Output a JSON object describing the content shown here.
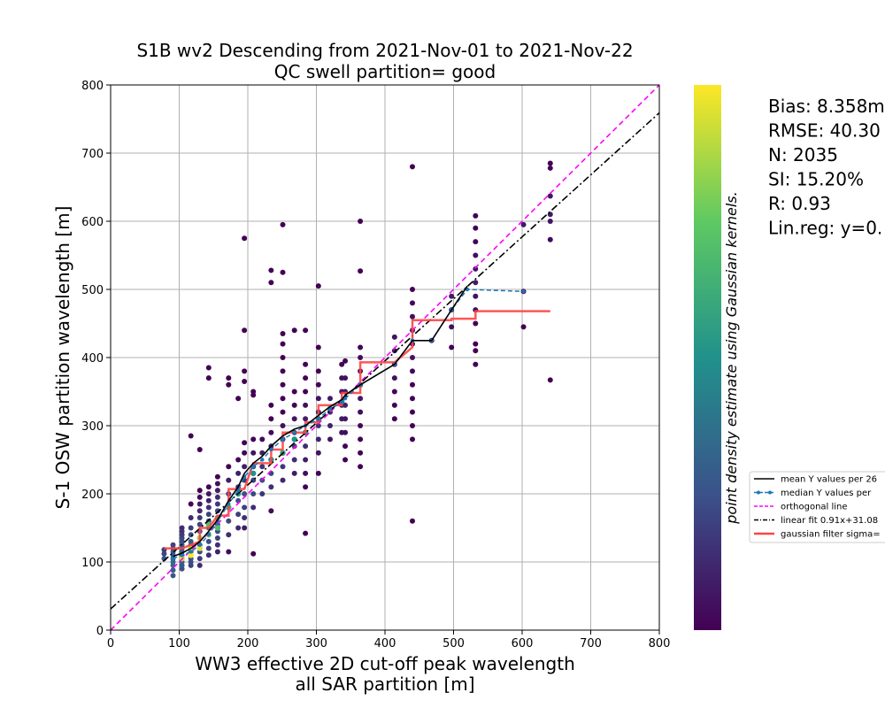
{
  "chart_data": {
    "type": "scatter",
    "title_line1": "S1B wv2 Descending from 2021-Nov-01 to 2021-Nov-22",
    "title_line2": "QC swell partition= good",
    "xlabel_line1": "WW3 effective 2D cut-off peak wavelength",
    "xlabel_line2": "all SAR partition [m]",
    "ylabel": "S-1 OSW partition wavelength [m]",
    "xlim": [
      0,
      800
    ],
    "ylim": [
      0,
      800
    ],
    "xticks": [
      0,
      100,
      200,
      300,
      400,
      500,
      600,
      700,
      800
    ],
    "yticks": [
      0,
      100,
      200,
      300,
      400,
      500,
      600,
      700,
      800
    ],
    "grid": true,
    "colorbar_label": "point density estimate using Gaussian kernels.",
    "colormap": [
      "#440154",
      "#3b528b",
      "#21918c",
      "#5ec962",
      "#fde725"
    ],
    "stats": [
      "Bias: 8.358m",
      "RMSE: 40.30",
      "N: 2035",
      "SI: 15.20%",
      "R: 0.93",
      "Lin.reg: y=0."
    ],
    "legend": [
      {
        "label": "mean Y values per 26",
        "color": "#000000",
        "style": "solid"
      },
      {
        "label": "median Y values per",
        "color": "#1f77b4",
        "style": "dashed-dot-marker"
      },
      {
        "label": "orthogonal line",
        "color": "#ff00ff",
        "style": "dashed"
      },
      {
        "label": "linear fit 0.91x+31.08",
        "color": "#000000",
        "style": "dashdot"
      },
      {
        "label": "gaussian filter sigma=",
        "color": "#ff4444",
        "style": "thick"
      }
    ],
    "scatter_columns": [
      {
        "x": 78,
        "y": [
          105,
          112,
          118
        ]
      },
      {
        "x": 91,
        "y": [
          80,
          88,
          95,
          100,
          105,
          110,
          115,
          120,
          125
        ]
      },
      {
        "x": 104,
        "y": [
          90,
          95,
          100,
          105,
          110,
          115,
          120,
          125,
          130,
          135,
          140,
          145,
          150
        ]
      },
      {
        "x": 117,
        "y": [
          95,
          100,
          105,
          110,
          115,
          120,
          125,
          130,
          140,
          150,
          165,
          185,
          285
        ]
      },
      {
        "x": 130,
        "y": [
          95,
          105,
          115,
          125,
          135,
          145,
          155,
          165,
          175,
          185,
          195,
          205,
          265
        ]
      },
      {
        "x": 143,
        "y": [
          110,
          120,
          130,
          140,
          150,
          160,
          170,
          180,
          190,
          200,
          210,
          370,
          385
        ]
      },
      {
        "x": 156,
        "y": [
          115,
          125,
          135,
          145,
          155,
          165,
          175,
          185,
          195,
          205,
          215,
          225
        ]
      },
      {
        "x": 172,
        "y": [
          115,
          140,
          160,
          180,
          200,
          220,
          240,
          360,
          370
        ]
      },
      {
        "x": 186,
        "y": [
          150,
          170,
          190,
          210,
          230,
          250,
          340
        ]
      },
      {
        "x": 195,
        "y": [
          150,
          165,
          180,
          200,
          220,
          240,
          260,
          275,
          365,
          380,
          440,
          575
        ]
      },
      {
        "x": 208,
        "y": [
          112,
          180,
          200,
          220,
          240,
          260,
          280,
          345,
          350
        ]
      },
      {
        "x": 221,
        "y": [
          200,
          220,
          240,
          260,
          280
        ]
      },
      {
        "x": 234,
        "y": [
          175,
          210,
          230,
          250,
          270,
          290,
          310,
          330,
          510,
          528
        ]
      },
      {
        "x": 251,
        "y": [
          220,
          240,
          260,
          280,
          300,
          320,
          340,
          360,
          380,
          400,
          420,
          435,
          525,
          595
        ]
      },
      {
        "x": 268,
        "y": [
          230,
          250,
          270,
          290,
          310,
          330,
          350,
          440
        ]
      },
      {
        "x": 284,
        "y": [
          142,
          210,
          230,
          250,
          270,
          290,
          310,
          330,
          350,
          370,
          390,
          440
        ]
      },
      {
        "x": 303,
        "y": [
          230,
          260,
          280,
          300,
          320,
          340,
          360,
          380,
          415,
          505
        ]
      },
      {
        "x": 320,
        "y": [
          280,
          300,
          320,
          340
        ]
      },
      {
        "x": 337,
        "y": [
          290,
          310,
          330,
          350,
          370,
          390
        ]
      },
      {
        "x": 342,
        "y": [
          250,
          270,
          290,
          310,
          330,
          350,
          370,
          395
        ]
      },
      {
        "x": 364,
        "y": [
          240,
          260,
          280,
          300,
          320,
          340,
          360,
          380,
          400,
          415,
          527,
          600
        ]
      },
      {
        "x": 414,
        "y": [
          310,
          330,
          350,
          370,
          390,
          410,
          430
        ]
      },
      {
        "x": 440,
        "y": [
          160,
          280,
          300,
          320,
          340,
          360,
          380,
          400,
          420,
          440,
          460,
          480,
          500,
          680
        ]
      },
      {
        "x": 468,
        "y": [
          425
        ]
      },
      {
        "x": 497,
        "y": [
          415,
          445,
          470,
          490
        ]
      },
      {
        "x": 532,
        "y": [
          390,
          410,
          420,
          450,
          470,
          490,
          510,
          530,
          550,
          570,
          590,
          608
        ]
      },
      {
        "x": 602,
        "y": [
          445,
          497,
          595
        ]
      },
      {
        "x": 641,
        "y": [
          367,
          573,
          600,
          610,
          637,
          678,
          685
        ]
      }
    ],
    "dense_points": [
      {
        "x": 104,
        "y": 105,
        "d": 0.95
      },
      {
        "x": 117,
        "y": 110,
        "d": 1.0
      },
      {
        "x": 117,
        "y": 120,
        "d": 0.9
      },
      {
        "x": 130,
        "y": 120,
        "d": 0.95
      },
      {
        "x": 130,
        "y": 135,
        "d": 0.85
      },
      {
        "x": 143,
        "y": 140,
        "d": 0.8
      },
      {
        "x": 143,
        "y": 155,
        "d": 0.7
      },
      {
        "x": 156,
        "y": 150,
        "d": 0.7
      },
      {
        "x": 156,
        "y": 165,
        "d": 0.6
      },
      {
        "x": 172,
        "y": 180,
        "d": 0.6
      },
      {
        "x": 186,
        "y": 200,
        "d": 0.55
      },
      {
        "x": 208,
        "y": 230,
        "d": 0.5
      },
      {
        "x": 234,
        "y": 250,
        "d": 0.5
      },
      {
        "x": 251,
        "y": 260,
        "d": 0.55
      },
      {
        "x": 268,
        "y": 280,
        "d": 0.5
      },
      {
        "x": 284,
        "y": 290,
        "d": 0.5
      },
      {
        "x": 303,
        "y": 310,
        "d": 0.5
      },
      {
        "x": 320,
        "y": 325,
        "d": 0.6
      },
      {
        "x": 337,
        "y": 335,
        "d": 0.45
      },
      {
        "x": 364,
        "y": 360,
        "d": 0.35
      }
    ],
    "mean_line": [
      [
        91,
        108
      ],
      [
        104,
        113
      ],
      [
        117,
        120
      ],
      [
        130,
        130
      ],
      [
        143,
        145
      ],
      [
        156,
        162
      ],
      [
        172,
        190
      ],
      [
        186,
        210
      ],
      [
        195,
        230
      ],
      [
        208,
        245
      ],
      [
        221,
        255
      ],
      [
        234,
        270
      ],
      [
        251,
        285
      ],
      [
        268,
        295
      ],
      [
        284,
        300
      ],
      [
        303,
        315
      ],
      [
        320,
        328
      ],
      [
        337,
        338
      ],
      [
        342,
        345
      ],
      [
        364,
        360
      ],
      [
        414,
        390
      ],
      [
        440,
        425
      ],
      [
        468,
        425
      ],
      [
        497,
        470
      ],
      [
        520,
        505
      ]
    ],
    "median_line": [
      [
        91,
        105
      ],
      [
        104,
        110
      ],
      [
        117,
        115
      ],
      [
        130,
        125
      ],
      [
        143,
        140
      ],
      [
        156,
        160
      ],
      [
        172,
        185
      ],
      [
        186,
        205
      ],
      [
        195,
        225
      ],
      [
        208,
        240
      ],
      [
        221,
        250
      ],
      [
        234,
        265
      ],
      [
        251,
        280
      ],
      [
        268,
        290
      ],
      [
        284,
        300
      ],
      [
        303,
        310
      ],
      [
        320,
        325
      ],
      [
        337,
        335
      ],
      [
        342,
        340
      ],
      [
        364,
        360
      ],
      [
        414,
        390
      ],
      [
        440,
        425
      ],
      [
        468,
        425
      ],
      [
        497,
        470
      ],
      [
        520,
        500
      ],
      [
        602,
        497
      ]
    ],
    "gaussian_line": [
      [
        78,
        120
      ],
      [
        91,
        120
      ],
      [
        104,
        120
      ],
      [
        117,
        125
      ],
      [
        130,
        130
      ],
      [
        130,
        150
      ],
      [
        143,
        150
      ],
      [
        156,
        168
      ],
      [
        172,
        168
      ],
      [
        172,
        207
      ],
      [
        195,
        207
      ],
      [
        208,
        245
      ],
      [
        234,
        245
      ],
      [
        234,
        265
      ],
      [
        251,
        265
      ],
      [
        251,
        290
      ],
      [
        284,
        290
      ],
      [
        284,
        305
      ],
      [
        303,
        305
      ],
      [
        303,
        330
      ],
      [
        337,
        330
      ],
      [
        337,
        348
      ],
      [
        364,
        348
      ],
      [
        364,
        393
      ],
      [
        414,
        393
      ],
      [
        440,
        415
      ],
      [
        440,
        455
      ],
      [
        497,
        455
      ],
      [
        497,
        457
      ],
      [
        532,
        457
      ],
      [
        532,
        468
      ],
      [
        641,
        468
      ]
    ],
    "linear_fit": {
      "slope": 0.91,
      "intercept": 31.08
    },
    "orthogonal_line": {
      "slope": 1,
      "intercept": 0
    }
  }
}
